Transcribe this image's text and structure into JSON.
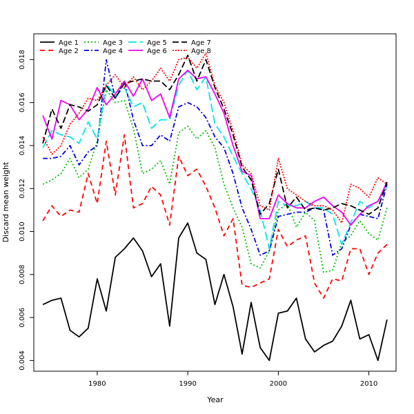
{
  "chart_data": {
    "type": "line",
    "title": "",
    "xlabel": "Year",
    "ylabel": "Discard mean weight",
    "xlim": [
      1973,
      2013
    ],
    "ylim": [
      0.0035,
      0.0192
    ],
    "x_ticks": [
      1980,
      1990,
      2000,
      2010
    ],
    "y_ticks": [
      0.004,
      0.006,
      0.008,
      0.01,
      0.012,
      0.014,
      0.016,
      0.018
    ],
    "grid": false,
    "legend_position": "top-left",
    "x": [
      1974,
      1975,
      1976,
      1977,
      1978,
      1979,
      1980,
      1981,
      1982,
      1983,
      1984,
      1985,
      1986,
      1987,
      1988,
      1989,
      1990,
      1991,
      1992,
      1993,
      1994,
      1995,
      1996,
      1997,
      1998,
      1999,
      2000,
      2001,
      2002,
      2003,
      2004,
      2005,
      2006,
      2007,
      2008,
      2009,
      2010,
      2011,
      2012
    ],
    "series": [
      {
        "name": "Age 1",
        "color": "#000000",
        "dash": "solid",
        "values": [
          0.0066,
          0.0068,
          0.0069,
          0.0054,
          0.0051,
          0.0055,
          0.0078,
          0.0063,
          0.0088,
          0.0092,
          0.0097,
          0.0091,
          0.0079,
          0.0085,
          0.0056,
          0.0097,
          0.0104,
          0.009,
          0.0087,
          0.0066,
          0.008,
          0.0065,
          0.0043,
          0.0067,
          0.0046,
          0.004,
          0.0062,
          0.0063,
          0.0069,
          0.005,
          0.0044,
          0.0047,
          0.0049,
          0.0056,
          0.0068,
          0.005,
          0.0052,
          0.004,
          0.0059
        ]
      },
      {
        "name": "Age 2",
        "color": "#ff0000",
        "dash": "dashed",
        "values": [
          0.0105,
          0.0112,
          0.0107,
          0.011,
          0.0109,
          0.0127,
          0.0113,
          0.0142,
          0.0117,
          0.0145,
          0.0111,
          0.0113,
          0.0121,
          0.0117,
          0.0103,
          0.0135,
          0.0126,
          0.0129,
          0.0121,
          0.0111,
          0.0098,
          0.0106,
          0.0075,
          0.0074,
          0.0076,
          0.0078,
          0.0101,
          0.0093,
          0.0096,
          0.0098,
          0.0076,
          0.0069,
          0.0078,
          0.0077,
          0.0092,
          0.0092,
          0.008,
          0.009,
          0.0094
        ]
      },
      {
        "name": "Age 3",
        "color": "#00bb00",
        "dash": "dotted",
        "values": [
          0.0122,
          0.0124,
          0.0127,
          0.0134,
          0.0125,
          0.0129,
          0.0142,
          0.0166,
          0.016,
          0.0161,
          0.0148,
          0.0127,
          0.0129,
          0.0133,
          0.0122,
          0.0146,
          0.0149,
          0.0143,
          0.0147,
          0.0139,
          0.0122,
          0.0111,
          0.0102,
          0.0085,
          0.0083,
          0.0091,
          0.011,
          0.0113,
          0.0102,
          0.0109,
          0.0105,
          0.0081,
          0.0082,
          0.0095,
          0.0098,
          0.0105,
          0.0099,
          0.0096,
          0.0111
        ]
      },
      {
        "name": "Age 4",
        "color": "#0000dd",
        "dash": "dashdot",
        "values": [
          0.0134,
          0.0134,
          0.0135,
          0.014,
          0.0131,
          0.0137,
          0.014,
          0.018,
          0.0162,
          0.017,
          0.0152,
          0.014,
          0.014,
          0.0145,
          0.0142,
          0.0158,
          0.016,
          0.0158,
          0.0153,
          0.0144,
          0.0139,
          0.0127,
          0.0111,
          0.0101,
          0.0089,
          0.0091,
          0.0107,
          0.0108,
          0.0109,
          0.0109,
          0.0111,
          0.011,
          0.0089,
          0.0092,
          0.0103,
          0.0108,
          0.0107,
          0.0106,
          0.0122
        ]
      },
      {
        "name": "Age 5",
        "color": "#00e5e5",
        "dash": "longdash",
        "values": [
          0.0139,
          0.0147,
          0.0145,
          0.0144,
          0.0141,
          0.0151,
          0.0143,
          0.0169,
          0.0163,
          0.0167,
          0.0158,
          0.016,
          0.0148,
          0.0152,
          0.0152,
          0.0168,
          0.0175,
          0.0166,
          0.0172,
          0.015,
          0.0144,
          0.0135,
          0.0127,
          0.012,
          0.011,
          0.0092,
          0.0114,
          0.0112,
          0.0112,
          0.0114,
          0.0111,
          0.0111,
          0.0108,
          0.0094,
          0.0104,
          0.0114,
          0.0111,
          0.0114,
          0.0121
        ]
      },
      {
        "name": "Age 6",
        "color": "#ee00ee",
        "dash": "solid",
        "values": [
          0.0154,
          0.0143,
          0.0161,
          0.0159,
          0.0152,
          0.0157,
          0.0167,
          0.0159,
          0.0164,
          0.017,
          0.0163,
          0.0171,
          0.0161,
          0.0164,
          0.0153,
          0.0171,
          0.0175,
          0.0171,
          0.0172,
          0.0164,
          0.0155,
          0.014,
          0.0128,
          0.0126,
          0.0106,
          0.0106,
          0.0117,
          0.0113,
          0.0111,
          0.0111,
          0.0114,
          0.0116,
          0.0112,
          0.0109,
          0.0103,
          0.0108,
          0.0112,
          0.0114,
          0.0123
        ]
      },
      {
        "name": "Age 7",
        "color": "#000000",
        "dash": "twodash",
        "values": [
          0.0141,
          0.0157,
          0.0148,
          0.0159,
          0.0158,
          0.0156,
          0.0159,
          0.0168,
          0.0162,
          0.0169,
          0.017,
          0.0171,
          0.017,
          0.017,
          0.0166,
          0.0173,
          0.0182,
          0.017,
          0.018,
          0.0167,
          0.0157,
          0.0145,
          0.013,
          0.0124,
          0.0108,
          0.0113,
          0.0129,
          0.0111,
          0.0116,
          0.011,
          0.0111,
          0.011,
          0.0111,
          0.0113,
          0.0112,
          0.011,
          0.0108,
          0.0111,
          0.0123
        ]
      },
      {
        "name": "Age 8",
        "color": "#ff0000",
        "dash": "densedot",
        "values": [
          0.0144,
          0.0136,
          0.014,
          0.015,
          0.0155,
          0.0162,
          0.0161,
          0.0168,
          0.0173,
          0.0167,
          0.0172,
          0.0166,
          0.017,
          0.0176,
          0.017,
          0.018,
          0.0181,
          0.0176,
          0.0183,
          0.0168,
          0.016,
          0.0147,
          0.0131,
          0.0127,
          0.0112,
          0.011,
          0.0134,
          0.012,
          0.0117,
          0.0114,
          0.0112,
          0.0112,
          0.011,
          0.0104,
          0.0122,
          0.012,
          0.0116,
          0.0125,
          0.0122
        ]
      }
    ]
  }
}
